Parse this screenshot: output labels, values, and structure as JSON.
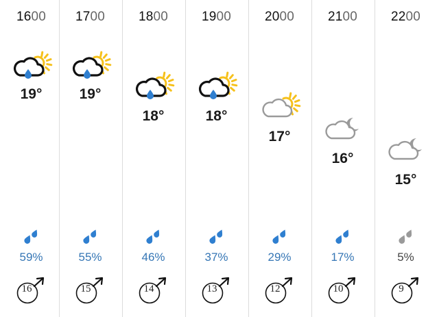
{
  "hours": [
    {
      "time_hh": "16",
      "time_mm": "00",
      "icon": "sun-cloud-rain-icon",
      "temp": "19°",
      "rain_chance": "59%",
      "drop_icon": "rain-drops-icon",
      "wind_speed": "16"
    },
    {
      "time_hh": "17",
      "time_mm": "00",
      "icon": "sun-cloud-rain-icon",
      "temp": "19°",
      "rain_chance": "55%",
      "drop_icon": "rain-drops-icon",
      "wind_speed": "15"
    },
    {
      "time_hh": "18",
      "time_mm": "00",
      "icon": "sun-cloud-rain-icon",
      "temp": "18°",
      "rain_chance": "46%",
      "drop_icon": "rain-drops-icon",
      "wind_speed": "14"
    },
    {
      "time_hh": "19",
      "time_mm": "00",
      "icon": "sun-cloud-rain-icon",
      "temp": "18°",
      "rain_chance": "37%",
      "drop_icon": "rain-drops-icon",
      "wind_speed": "13"
    },
    {
      "time_hh": "20",
      "time_mm": "00",
      "icon": "sun-cloud-icon",
      "temp": "17°",
      "rain_chance": "29%",
      "drop_icon": "rain-drops-icon",
      "wind_speed": "12"
    },
    {
      "time_hh": "21",
      "time_mm": "00",
      "icon": "moon-cloud-icon",
      "temp": "16°",
      "rain_chance": "17%",
      "drop_icon": "rain-drops-icon",
      "wind_speed": "10"
    },
    {
      "time_hh": "22",
      "time_mm": "00",
      "icon": "moon-cloud-icon",
      "temp": "15°",
      "rain_chance": "5%",
      "drop_icon": "rain-drops-grey-icon",
      "wind_speed": "9"
    }
  ],
  "colors": {
    "rain_blue": "#3576b5",
    "drop_blue": "#2f7fd0",
    "sun_yellow": "#f6c11b",
    "cloud_grey": "#9a9a9a",
    "drop_grey": "#9a9a9a"
  }
}
